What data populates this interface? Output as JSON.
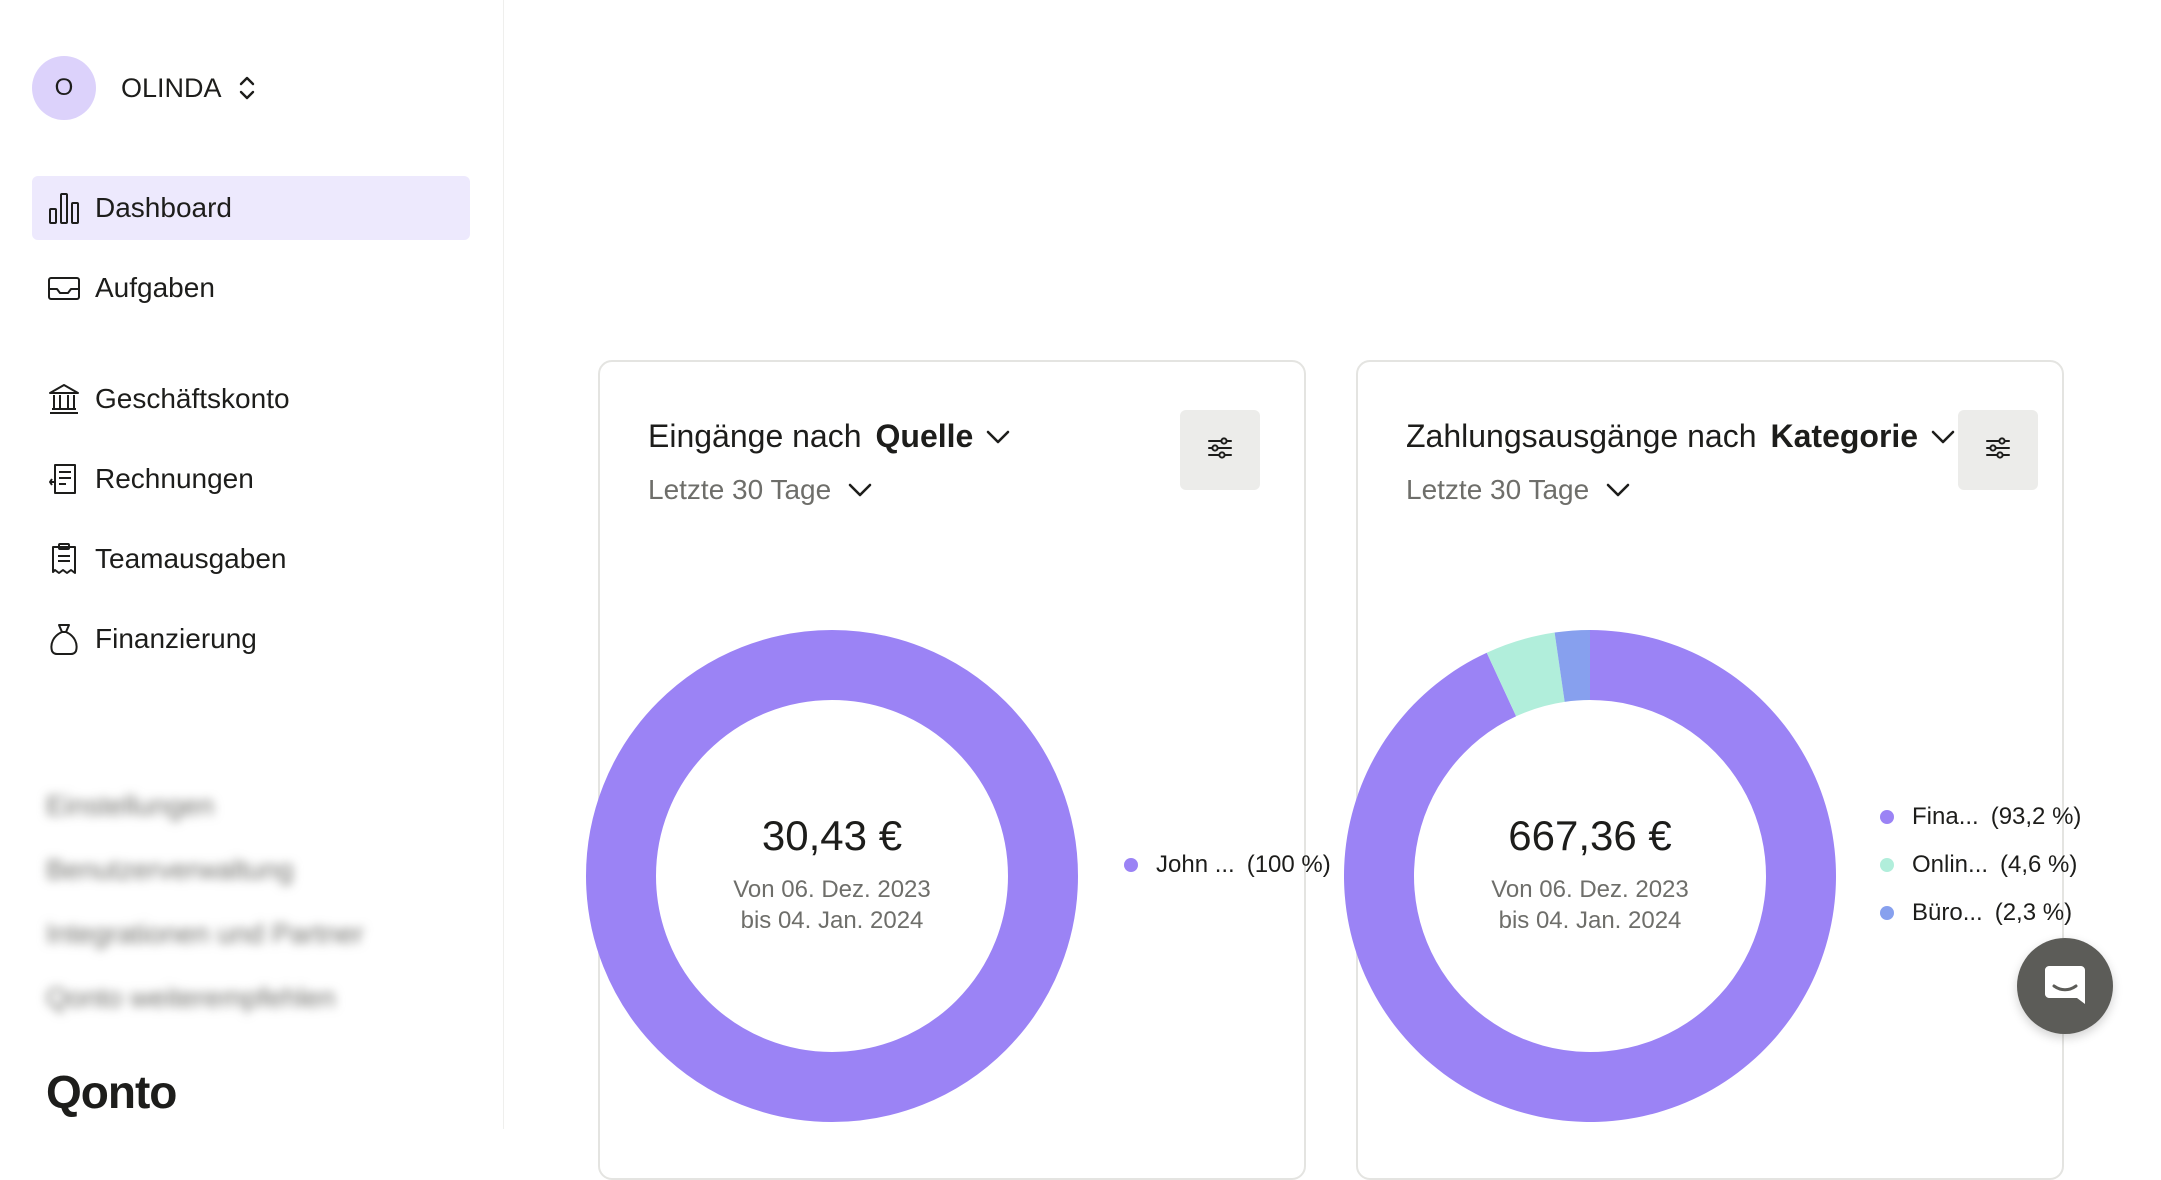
{
  "org": {
    "initial": "O",
    "name": "OLINDA"
  },
  "nav": {
    "dashboard": "Dashboard",
    "tasks": "Aufgaben",
    "business_account": "Geschäftskonto",
    "invoices": "Rechnungen",
    "team_expenses": "Teamausgaben",
    "financing": "Finanzierung"
  },
  "sidebar_blurred": {
    "settings": "Einstellungen",
    "user_management": "Benutzerverwaltung",
    "integrations": "Integrationen und Partner",
    "recommend": "Qonto weiterempfehlen"
  },
  "brand": "Qonto",
  "cards": {
    "income": {
      "title_prefix": "Eingänge nach",
      "title_dimension": "Quelle",
      "period": "Letzte 30 Tage",
      "amount": "30,43 €",
      "range_line1": "Von 06. Dez. 2023",
      "range_line2": "bis 04. Jan. 2024",
      "legend": [
        {
          "label": "John ...",
          "pct": "(100 %)"
        }
      ]
    },
    "expenses": {
      "title_prefix": "Zahlungsausgänge nach",
      "title_dimension": "Kategorie",
      "period": "Letzte 30 Tage",
      "amount": "667,36 €",
      "range_line1": "Von 06. Dez. 2023",
      "range_line2": "bis 04. Jan. 2024",
      "legend": [
        {
          "label": "Fina...",
          "pct": "(93,2 %)"
        },
        {
          "label": "Onlin...",
          "pct": "(4,6 %)"
        },
        {
          "label": "Büro...",
          "pct": "(2,3 %)"
        }
      ]
    }
  },
  "chart_data": [
    {
      "type": "pie",
      "title": "Eingänge nach Quelle",
      "categories": [
        "John ..."
      ],
      "values": [
        100
      ],
      "colors": [
        "#9b83f5"
      ]
    },
    {
      "type": "pie",
      "title": "Zahlungsausgänge nach Kategorie",
      "categories": [
        "Fina...",
        "Onlin...",
        "Büro..."
      ],
      "values": [
        93.2,
        4.6,
        2.3
      ],
      "colors": [
        "#9b83f5",
        "#b1eedb",
        "#87a0ee"
      ]
    }
  ],
  "colors": {
    "accent": "#9b83f5",
    "active_nav_bg": "#ede9fd",
    "avatar_bg": "#dcd2fb"
  },
  "icons": {
    "chat": "chat-bubble-icon",
    "filter": "sliders-icon"
  }
}
